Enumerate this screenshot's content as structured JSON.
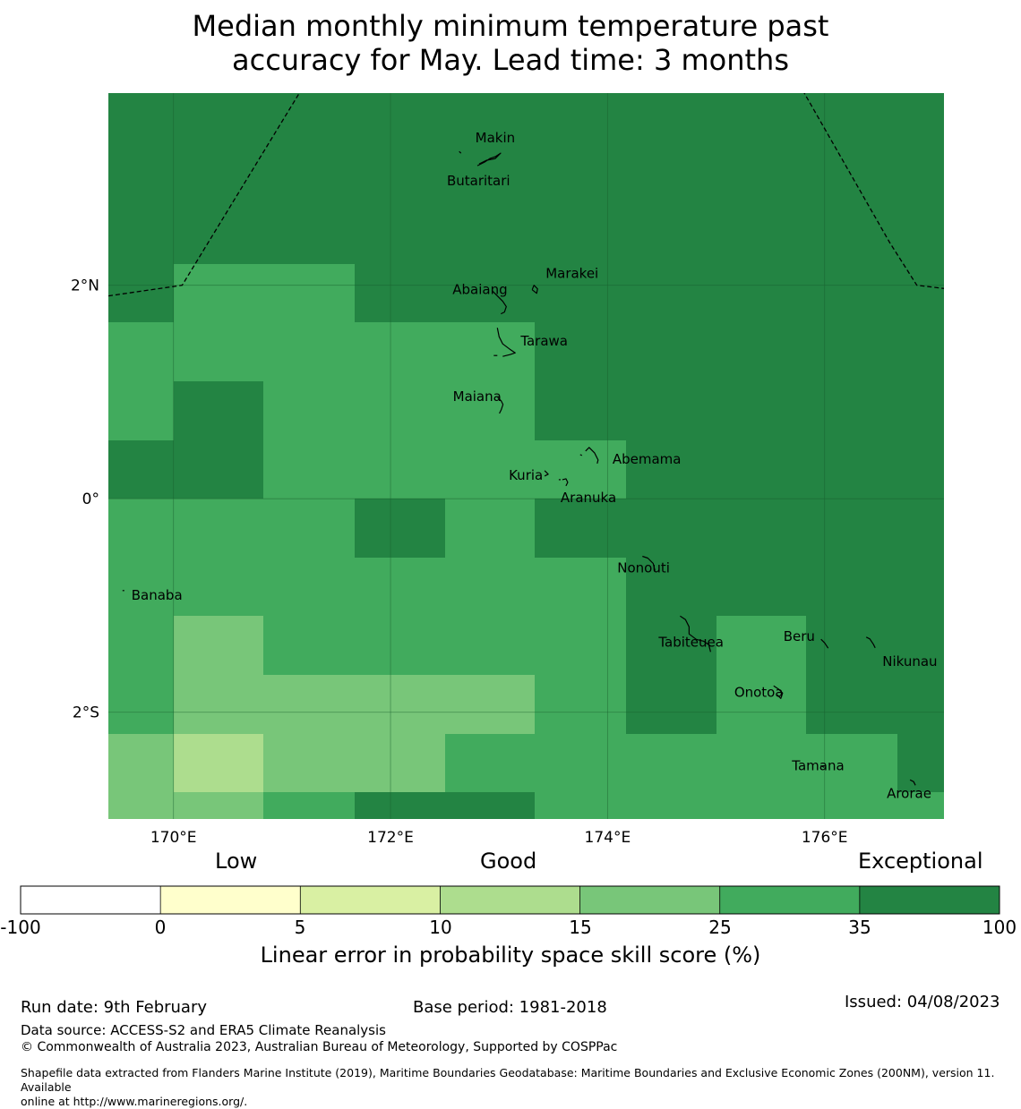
{
  "title": {
    "line1": "Median monthly minimum temperature past",
    "line2": "accuracy for May. Lead time: 3 months"
  },
  "map": {
    "lon_range": [
      169.4,
      177.1
    ],
    "lat_range": [
      -3.0,
      3.8
    ],
    "lon_ticks": [
      {
        "value": 170,
        "label": "170°E"
      },
      {
        "value": 172,
        "label": "172°E"
      },
      {
        "value": 174,
        "label": "174°E"
      },
      {
        "value": 176,
        "label": "176°E"
      }
    ],
    "lat_ticks": [
      {
        "value": 2,
        "label": "2°N"
      },
      {
        "value": 0,
        "label": "0°"
      },
      {
        "value": -2,
        "label": "2°S"
      }
    ],
    "grid_lon_edges": [
      169.4,
      170.0,
      170.83,
      171.67,
      172.5,
      173.33,
      174.17,
      175.0,
      175.83,
      176.67,
      177.1
    ],
    "grid_lat_edges": [
      3.8,
      2.2,
      1.65,
      1.1,
      0.55,
      0.0,
      -0.55,
      -1.1,
      -1.65,
      -2.2,
      -2.75,
      -3.0
    ],
    "skill_levels": [
      [
        35,
        35,
        35,
        35,
        35,
        35,
        35,
        35,
        35,
        35
      ],
      [
        35,
        25,
        25,
        35,
        35,
        35,
        35,
        35,
        35,
        35
      ],
      [
        25,
        25,
        25,
        25,
        25,
        35,
        35,
        35,
        35,
        35
      ],
      [
        25,
        35,
        25,
        25,
        25,
        35,
        35,
        35,
        35,
        35
      ],
      [
        35,
        35,
        25,
        25,
        25,
        25,
        35,
        35,
        35,
        35
      ],
      [
        25,
        25,
        25,
        35,
        25,
        35,
        35,
        35,
        35,
        35
      ],
      [
        25,
        25,
        25,
        25,
        25,
        25,
        35,
        35,
        35,
        35
      ],
      [
        25,
        15,
        25,
        25,
        25,
        25,
        35,
        25,
        35,
        35
      ],
      [
        25,
        15,
        15,
        15,
        15,
        25,
        35,
        25,
        35,
        35
      ],
      [
        15,
        10,
        15,
        15,
        25,
        25,
        25,
        25,
        25,
        35
      ],
      [
        15,
        15,
        25,
        35,
        35,
        25,
        25,
        25,
        25,
        25
      ]
    ],
    "eez_boundary_west": [
      [
        169.4,
        1.9
      ],
      [
        170.08,
        2.0
      ],
      [
        171.28,
        4.0
      ]
    ],
    "eez_boundary_east": [
      [
        175.7,
        4.0
      ],
      [
        176.6,
        2.4
      ],
      [
        176.85,
        2.0
      ],
      [
        177.1,
        1.97
      ]
    ],
    "islands": [
      {
        "name": "Makin",
        "lon": 172.88,
        "lat": 3.32
      },
      {
        "name": "Butaritari",
        "lon": 172.8,
        "lat": 3.12
      },
      {
        "name": "Marakei",
        "lon": 173.33,
        "lat": 2.0
      },
      {
        "name": "Abaiang",
        "lon": 173.05,
        "lat": 1.85
      },
      {
        "name": "Tarawa",
        "lon": 173.1,
        "lat": 1.4
      },
      {
        "name": "Maiana",
        "lon": 173.02,
        "lat": 0.9
      },
      {
        "name": "Abemama",
        "lon": 173.88,
        "lat": 0.38
      },
      {
        "name": "Kuria",
        "lon": 173.42,
        "lat": 0.23
      },
      {
        "name": "Aranuka",
        "lon": 173.6,
        "lat": 0.17
      },
      {
        "name": "Nonouti",
        "lon": 174.42,
        "lat": -0.64
      },
      {
        "name": "Banaba",
        "lon": 169.53,
        "lat": -0.86
      },
      {
        "name": "Tabiteuea",
        "lon": 174.85,
        "lat": -1.3
      },
      {
        "name": "Beru",
        "lon": 176.0,
        "lat": -1.35
      },
      {
        "name": "Nikunau",
        "lon": 176.45,
        "lat": -1.38
      },
      {
        "name": "Onotoa",
        "lon": 175.58,
        "lat": -1.82
      },
      {
        "name": "Tamana",
        "lon": 175.98,
        "lat": -2.5
      },
      {
        "name": "Arorae",
        "lon": 176.82,
        "lat": -2.65
      }
    ]
  },
  "colorbar": {
    "categories": [
      {
        "label": "Low"
      },
      {
        "label": "Good"
      },
      {
        "label": "Exceptional"
      }
    ],
    "bins": [
      {
        "from": -100,
        "to": 0,
        "color": "#ffffff"
      },
      {
        "from": 0,
        "to": 5,
        "color": "#ffffcc"
      },
      {
        "from": 5,
        "to": 10,
        "color": "#d9f0a3"
      },
      {
        "from": 10,
        "to": 15,
        "color": "#addd8e"
      },
      {
        "from": 15,
        "to": 25,
        "color": "#78c679"
      },
      {
        "from": 25,
        "to": 35,
        "color": "#41ab5d"
      },
      {
        "from": 35,
        "to": 100,
        "color": "#238443"
      }
    ],
    "tick_labels": [
      "-100",
      "0",
      "5",
      "10",
      "15",
      "25",
      "35",
      "100"
    ],
    "label": "Linear error in probability space skill score (%)"
  },
  "footer": {
    "run_date": "Run date: 9th February",
    "base_period": "Base period: 1981-2018",
    "issued": "Issued: 04/08/2023",
    "data_source": "Data source: ACCESS-S2 and ERA5 Climate Reanalysis",
    "copyright": "© Commonwealth of Australia 2023, Australian Bureau of Meteorology, Supported by COSPPac",
    "shapefile_line1": "Shapefile data extracted from Flanders Marine Institute (2019), Maritime Boundaries Geodatabase: Maritime Boundaries and Exclusive Economic Zones (200NM), version 11. Available",
    "shapefile_line2": "online at http://www.marineregions.org/."
  }
}
